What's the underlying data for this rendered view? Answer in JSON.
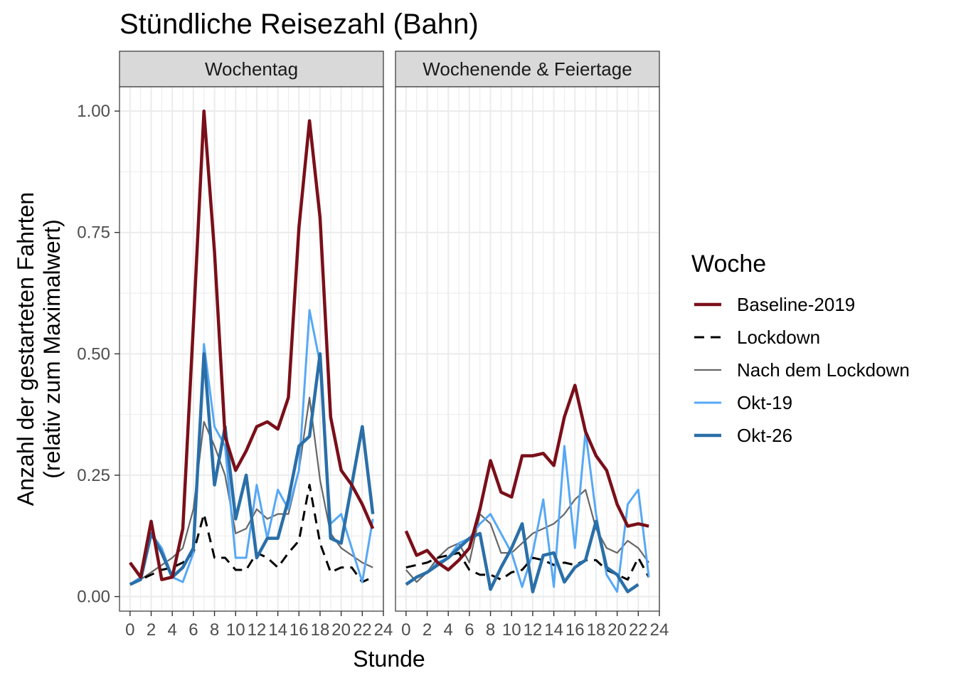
{
  "chart_data": {
    "type": "line",
    "title": "Stündliche Reisezahl (Bahn)",
    "xlabel": "Stunde",
    "ylabel_lines": [
      "Anzahl der gestarteten Fahrten",
      "(relativ zum Maximalwert)"
    ],
    "xlim": [
      -1,
      24
    ],
    "ylim": [
      -0.03,
      1.05
    ],
    "xticks": [
      0,
      2,
      4,
      6,
      8,
      10,
      12,
      14,
      16,
      18,
      20,
      22,
      24
    ],
    "xtick_labels": [
      "0",
      "2",
      "4",
      "6",
      "8",
      "10",
      "12",
      "14",
      "16",
      "18",
      "20",
      "22",
      "24"
    ],
    "yticks": [
      0,
      0.25,
      0.5,
      0.75,
      1.0
    ],
    "ytick_labels": [
      "0.00",
      "0.25",
      "0.50",
      "0.75",
      "1.00"
    ],
    "grid": true,
    "legend": {
      "title": "Woche",
      "position": "right",
      "entries": [
        {
          "name": "Baseline-2019",
          "color": "#7a0f19",
          "dash": "solid",
          "width": "thick"
        },
        {
          "name": "Lockdown",
          "color": "#000000",
          "dash": "dashed",
          "width": "medium"
        },
        {
          "name": "Nach dem Lockdown",
          "color": "#666666",
          "dash": "solid",
          "width": "thin"
        },
        {
          "name": "Okt-19",
          "color": "#56a8f5",
          "dash": "solid",
          "width": "medium"
        },
        {
          "name": "Okt-26",
          "color": "#2a6fa8",
          "dash": "solid",
          "width": "thick"
        }
      ]
    },
    "x": [
      0,
      1,
      2,
      3,
      4,
      5,
      6,
      7,
      8,
      9,
      10,
      11,
      12,
      13,
      14,
      15,
      16,
      17,
      18,
      19,
      20,
      21,
      22,
      23
    ],
    "panels": [
      {
        "label": "Wochentag",
        "series": [
          {
            "name": "Nach dem Lockdown",
            "values": [
              0.025,
              0.035,
              0.05,
              0.065,
              0.08,
              0.1,
              0.18,
              0.36,
              0.31,
              0.25,
              0.13,
              0.14,
              0.18,
              0.16,
              0.17,
              0.17,
              0.26,
              0.41,
              0.24,
              0.13,
              0.1,
              0.085,
              0.07,
              0.06
            ]
          },
          {
            "name": "Lockdown",
            "values": [
              0.025,
              0.035,
              0.045,
              0.055,
              0.06,
              0.07,
              0.09,
              0.17,
              0.08,
              0.08,
              0.055,
              0.055,
              0.09,
              0.08,
              0.06,
              0.09,
              0.115,
              0.23,
              0.11,
              0.05,
              0.06,
              0.06,
              0.03,
              0.04
            ]
          },
          {
            "name": "Okt-19",
            "values": [
              0.025,
              0.04,
              0.13,
              0.1,
              0.04,
              0.03,
              0.09,
              0.52,
              0.35,
              0.31,
              0.08,
              0.08,
              0.23,
              0.12,
              0.22,
              0.18,
              0.26,
              0.59,
              0.48,
              0.15,
              0.17,
              0.1,
              0.03,
              0.16
            ]
          },
          {
            "name": "Okt-26",
            "values": [
              0.025,
              0.035,
              0.13,
              0.09,
              0.04,
              0.06,
              0.1,
              0.5,
              0.23,
              0.35,
              0.16,
              0.25,
              0.08,
              0.12,
              0.12,
              0.2,
              0.31,
              0.33,
              0.5,
              0.12,
              0.11,
              0.23,
              0.35,
              0.17
            ]
          },
          {
            "name": "Baseline-2019",
            "values": [
              0.07,
              0.04,
              0.155,
              0.035,
              0.04,
              0.14,
              0.56,
              1.0,
              0.71,
              0.33,
              0.26,
              0.3,
              0.35,
              0.36,
              0.345,
              0.41,
              0.76,
              0.98,
              0.78,
              0.37,
              0.26,
              0.23,
              0.19,
              0.14
            ]
          }
        ]
      },
      {
        "label": "Wochenende & Feiertage",
        "series": [
          {
            "name": "Nach dem Lockdown",
            "values": [
              0.055,
              0.03,
              0.05,
              0.08,
              0.1,
              0.11,
              0.07,
              0.17,
              0.15,
              0.09,
              0.09,
              0.11,
              0.13,
              0.14,
              0.15,
              0.17,
              0.2,
              0.22,
              0.14,
              0.1,
              0.09,
              0.115,
              0.1,
              0.07
            ]
          },
          {
            "name": "Lockdown",
            "values": [
              0.06,
              0.065,
              0.07,
              0.08,
              0.085,
              0.09,
              0.055,
              0.045,
              0.045,
              0.035,
              0.05,
              0.055,
              0.08,
              0.075,
              0.065,
              0.07,
              0.065,
              0.075,
              0.075,
              0.055,
              0.045,
              0.035,
              0.08,
              0.04
            ]
          },
          {
            "name": "Okt-19",
            "values": [
              0.025,
              0.04,
              0.05,
              0.07,
              0.08,
              0.11,
              0.12,
              0.15,
              0.17,
              0.13,
              0.09,
              0.02,
              0.09,
              0.2,
              0.02,
              0.31,
              0.1,
              0.34,
              0.17,
              0.045,
              0.01,
              0.19,
              0.22,
              0.04
            ]
          },
          {
            "name": "Okt-26",
            "values": [
              0.025,
              0.04,
              0.05,
              0.065,
              0.08,
              0.1,
              0.12,
              0.13,
              0.015,
              0.06,
              0.1,
              0.15,
              0.01,
              0.085,
              0.09,
              0.03,
              0.06,
              0.075,
              0.155,
              0.06,
              0.045,
              0.01,
              0.025,
              null
            ]
          },
          {
            "name": "Baseline-2019",
            "values": [
              0.135,
              0.085,
              0.095,
              0.07,
              0.055,
              0.075,
              0.1,
              0.18,
              0.28,
              0.215,
              0.205,
              0.29,
              0.29,
              0.295,
              0.27,
              0.37,
              0.435,
              0.34,
              0.29,
              0.26,
              0.19,
              0.145,
              0.15,
              0.145
            ]
          }
        ]
      }
    ]
  }
}
